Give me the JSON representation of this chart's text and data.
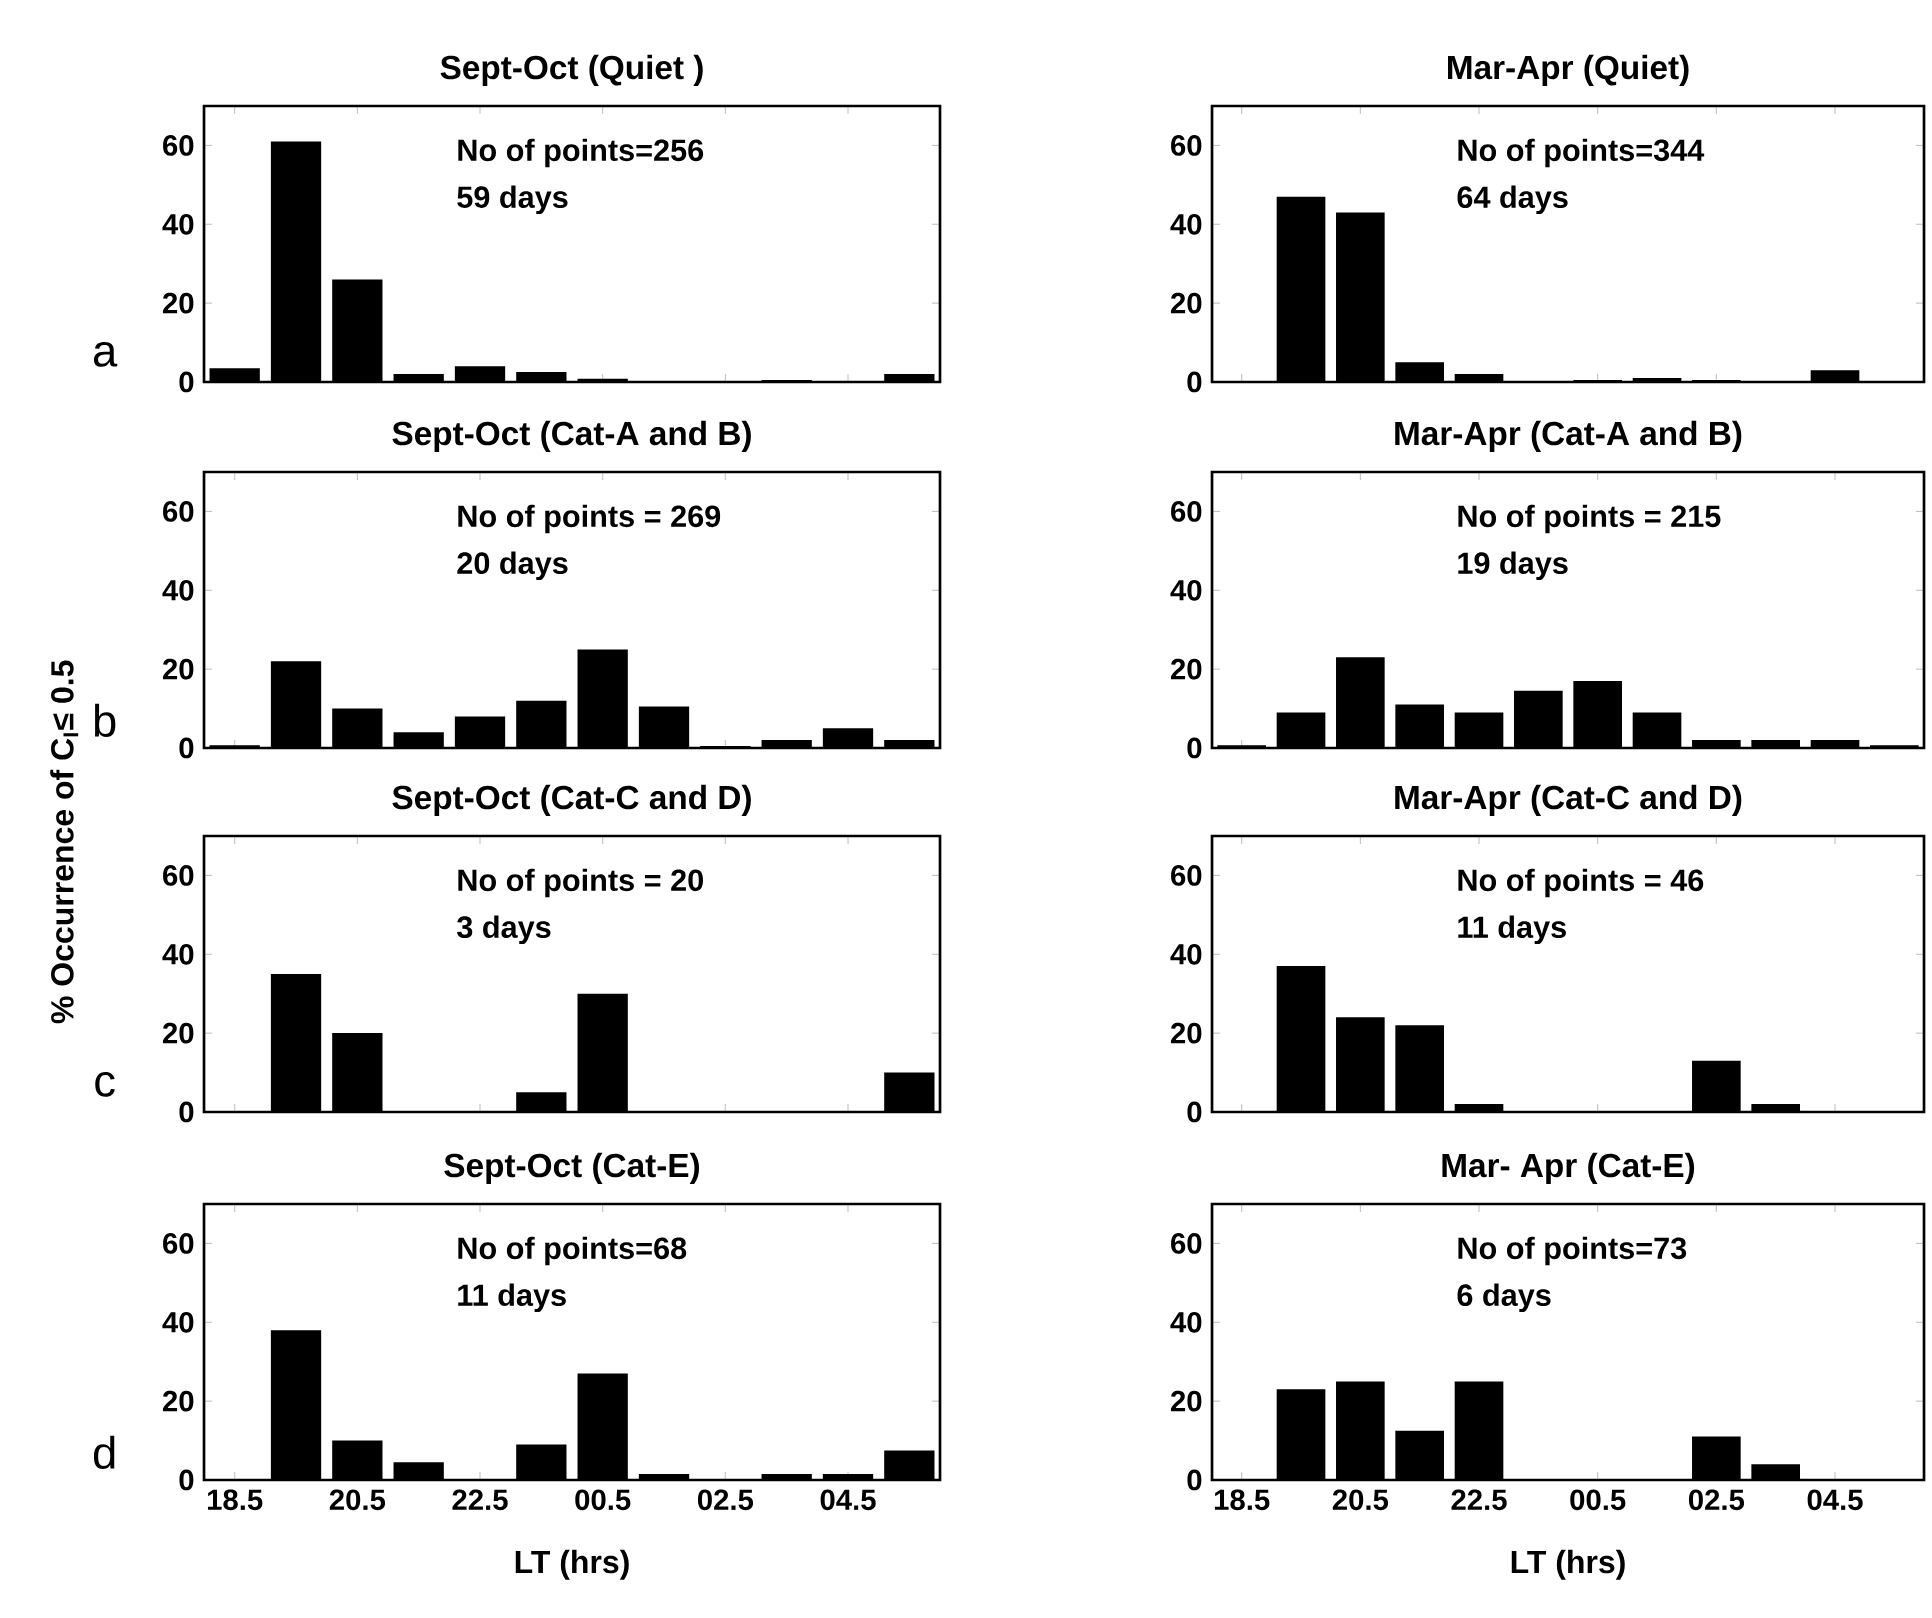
{
  "chart_data": [
    {
      "type": "bar",
      "title": "Sept-Oct (Quiet )",
      "categories": [
        "18.5",
        null,
        "20.5",
        null,
        "22.5",
        null,
        "00.5",
        null,
        "02.5",
        null,
        "04.5",
        null
      ],
      "values": [
        3.5,
        61,
        26,
        2,
        4,
        2.5,
        0.8,
        null,
        null,
        0.5,
        null,
        2
      ],
      "color": "#000000",
      "ylim": [
        0,
        70
      ],
      "yticks": [
        0,
        20,
        40,
        60
      ],
      "tick_labels": "y",
      "annotations": [
        "No of points=256",
        "59 days",
        "a"
      ]
    },
    {
      "type": "bar",
      "title": "Mar-Apr (Quiet)",
      "categories": [
        "18.5",
        null,
        "20.5",
        null,
        "22.5",
        null,
        "00.5",
        null,
        "02.5",
        null,
        "04.5",
        null
      ],
      "values": [
        null,
        47,
        43,
        5,
        2,
        null,
        0.5,
        1,
        0.5,
        null,
        3,
        null
      ],
      "color": "#000000",
      "ylim": [
        0,
        70
      ],
      "yticks": [
        0,
        20,
        40,
        60
      ],
      "tick_labels": "y",
      "annotations": [
        "No of points=344",
        "64 days"
      ]
    },
    {
      "type": "bar",
      "title": "Sept-Oct (Cat-A and B)",
      "ylabel": "% Occurrence of C$_{I}$≤ 0.5",
      "categories": [
        "18.5",
        null,
        "20.5",
        null,
        "22.5",
        null,
        "00.5",
        null,
        "02.5",
        null,
        "04.5",
        null
      ],
      "values": [
        0.7,
        22,
        10,
        4,
        8,
        12,
        25,
        10.5,
        0.5,
        2,
        5,
        2
      ],
      "color": "#000000",
      "ylim": [
        0,
        70
      ],
      "yticks": [
        0,
        20,
        40,
        60
      ],
      "tick_labels": "y",
      "annotations": [
        "No of points = 269",
        "20 days",
        "b"
      ]
    },
    {
      "type": "bar",
      "title": "Mar-Apr (Cat-A and B)",
      "categories": [
        "18.5",
        null,
        "20.5",
        null,
        "22.5",
        null,
        "00.5",
        null,
        "02.5",
        null,
        "04.5",
        null
      ],
      "values": [
        0.7,
        9,
        23,
        11,
        9,
        14.5,
        17,
        9,
        2,
        2,
        2,
        0.7
      ],
      "color": "#000000",
      "ylim": [
        0,
        70
      ],
      "yticks": [
        0,
        20,
        40,
        60
      ],
      "tick_labels": "y",
      "annotations": [
        "No of points = 215",
        "19 days"
      ]
    },
    {
      "type": "bar",
      "title": "Sept-Oct (Cat-C and D)",
      "categories": [
        "18.5",
        null,
        "20.5",
        null,
        "22.5",
        null,
        "00.5",
        null,
        "02.5",
        null,
        "04.5",
        null
      ],
      "values": [
        null,
        35,
        20,
        null,
        null,
        5,
        30,
        null,
        null,
        null,
        null,
        10
      ],
      "color": "#000000",
      "ylim": [
        0,
        70
      ],
      "yticks": [
        0,
        20,
        40,
        60
      ],
      "tick_labels": "y",
      "annotations": [
        "No of points = 20",
        "3 days",
        "c"
      ]
    },
    {
      "type": "bar",
      "title": "Mar-Apr (Cat-C and D)",
      "categories": [
        "18.5",
        null,
        "20.5",
        null,
        "22.5",
        null,
        "00.5",
        null,
        "02.5",
        null,
        "04.5",
        null
      ],
      "values": [
        null,
        37,
        24,
        22,
        2,
        null,
        null,
        null,
        13,
        2,
        null,
        null
      ],
      "color": "#000000",
      "ylim": [
        0,
        70
      ],
      "yticks": [
        0,
        20,
        40,
        60
      ],
      "tick_labels": "y",
      "annotations": [
        "No of points = 46",
        "11 days"
      ]
    },
    {
      "type": "bar",
      "title": "Sept-Oct (Cat-E)",
      "xlabel": "LT (hrs)",
      "categories": [
        "18.5",
        null,
        "20.5",
        null,
        "22.5",
        null,
        "00.5",
        null,
        "02.5",
        null,
        "04.5",
        null
      ],
      "values": [
        null,
        38,
        10,
        4.5,
        null,
        9,
        27,
        1.5,
        null,
        1.5,
        1.5,
        7.5
      ],
      "color": "#000000",
      "ylim": [
        0,
        70
      ],
      "yticks": [
        0,
        20,
        40,
        60
      ],
      "annotations": [
        "No of points=68",
        "11 days",
        "d"
      ]
    },
    {
      "type": "bar",
      "title": "Mar- Apr (Cat-E)",
      "xlabel": "LT (hrs)",
      "categories": [
        "18.5",
        null,
        "20.5",
        null,
        "22.5",
        null,
        "00.5",
        null,
        "02.5",
        null,
        "04.5",
        null
      ],
      "values": [
        null,
        23,
        25,
        12.5,
        25,
        null,
        null,
        null,
        11,
        4,
        null,
        null
      ],
      "color": "#000000",
      "ylim": [
        0,
        70
      ],
      "yticks": [
        0,
        20,
        40,
        60
      ],
      "annotations": [
        "No of points=73",
        "6 days"
      ]
    }
  ]
}
